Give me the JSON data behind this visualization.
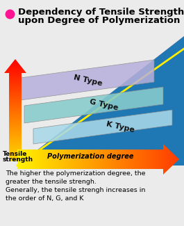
{
  "title_line1": "Dependency of Tensile Strength",
  "title_line2": "upon Degree of Polymerization",
  "dot_color": "#FF1493",
  "bg_color": "#EBEBEB",
  "layers": [
    {
      "label": "N Type",
      "color": "#B8B0DC",
      "zorder": 3
    },
    {
      "label": "G Type",
      "color": "#88CCCC",
      "zorder": 4
    },
    {
      "label": "K Type",
      "color": "#A8D8E8",
      "zorder": 5
    }
  ],
  "arrow_y_label_line1": "Tensile",
  "arrow_y_label_line2": "strength",
  "arrow_x_label": "Polymerization degree",
  "footer_text": "The higher the polymerization degree, the\ngreater the tensile strengh.\nGenerally, the tensile strengh increases in\nthe order of N, G, and K",
  "footer_fontsize": 6.8,
  "title_fontsize": 9.5
}
